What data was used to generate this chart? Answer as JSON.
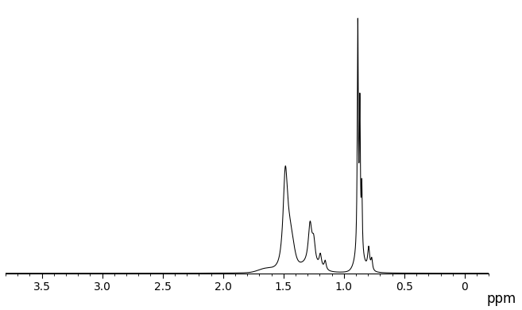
{
  "xlim": [
    3.8,
    -0.2
  ],
  "ylim": [
    -0.015,
    1.05
  ],
  "xlabel": "ppm",
  "xlabel_fontsize": 12,
  "tick_fontsize": 11,
  "line_color": "#000000",
  "background_color": "#ffffff",
  "spine_color": "#000000",
  "xticks": [
    3.5,
    3.0,
    2.5,
    2.0,
    1.5,
    1.0,
    0.5,
    0.0
  ],
  "xtick_labels": [
    "3.5",
    "3.0",
    "2.5",
    "2.0",
    "1.5",
    "1.0",
    "0.5",
    "0"
  ]
}
